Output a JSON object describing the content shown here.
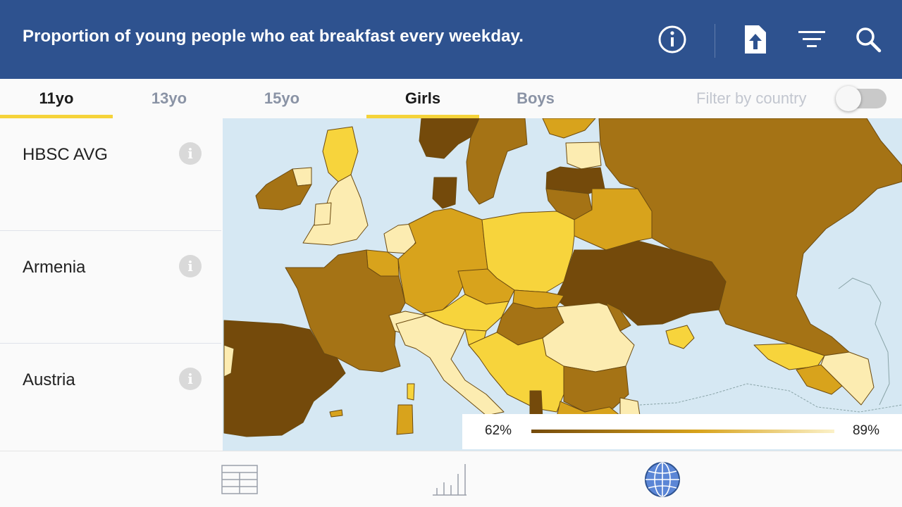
{
  "header": {
    "title": "Proportion of young people who eat breakfast every weekday.",
    "icons": [
      "info-icon",
      "share-icon",
      "filter-icon",
      "search-icon"
    ]
  },
  "age_tabs": [
    {
      "label": "11yo",
      "active": true
    },
    {
      "label": "13yo",
      "active": false
    },
    {
      "label": "15yo",
      "active": false
    }
  ],
  "gender_tabs": [
    {
      "label": "Girls",
      "active": true
    },
    {
      "label": "Boys",
      "active": false
    }
  ],
  "filter": {
    "label": "Filter by country",
    "enabled": false
  },
  "sidebar": {
    "items": [
      {
        "label": "HBSC AVG"
      },
      {
        "label": "Armenia"
      },
      {
        "label": "Austria"
      }
    ]
  },
  "legend": {
    "min_label": "62%",
    "max_label": "89%",
    "min_color": "#744a0b",
    "max_color": "#fbf1c8"
  },
  "colors": {
    "header_bg": "#2e528f",
    "accent": "#f5d33a",
    "sea": "#d6e8f3",
    "dark": "#744a0b",
    "brown": "#a57315",
    "gold": "#d8a31c",
    "yellow": "#f7d43c",
    "pale": "#fcecb1"
  },
  "bottom_nav": {
    "items": [
      "table-icon",
      "bar-chart-icon",
      "globe-icon"
    ],
    "active": "globe-icon"
  }
}
